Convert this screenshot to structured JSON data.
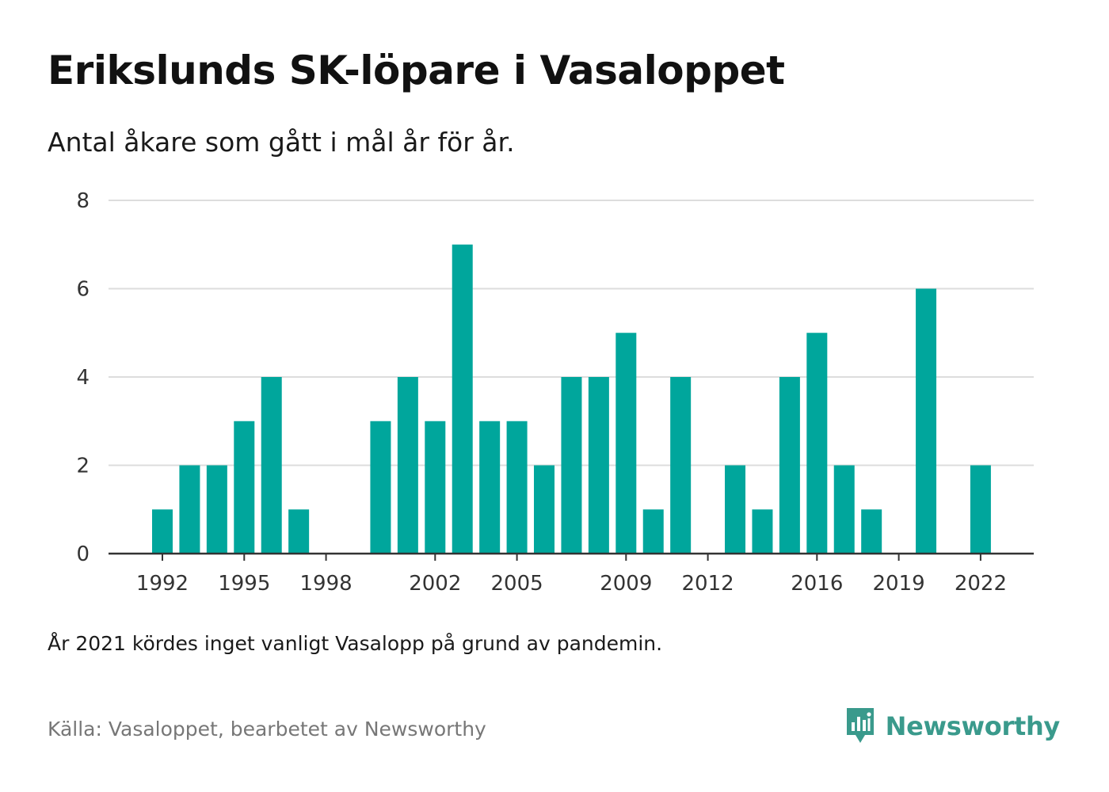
{
  "title": "Erikslunds SK-löpare i Vasaloppet",
  "subtitle": "Antal åkare som gått i mål år för år.",
  "note": "År 2021 kördes inget vanligt Vasalopp på grund av pandemin.",
  "source": "Källa: Vasaloppet, bearbetet av Newsworthy",
  "brand": {
    "name": "Newsworthy",
    "color": "#3a9a8c"
  },
  "chart_data": {
    "type": "bar",
    "x": [
      1992,
      1993,
      1994,
      1995,
      1996,
      1997,
      1998,
      1999,
      2000,
      2001,
      2002,
      2003,
      2004,
      2005,
      2006,
      2007,
      2008,
      2009,
      2010,
      2011,
      2012,
      2013,
      2014,
      2015,
      2016,
      2017,
      2018,
      2019,
      2020,
      2021,
      2022
    ],
    "values": [
      1,
      2,
      2,
      3,
      4,
      1,
      0,
      0,
      3,
      4,
      3,
      7,
      3,
      3,
      2,
      4,
      4,
      5,
      1,
      4,
      0,
      2,
      1,
      4,
      5,
      2,
      1,
      0,
      6,
      0,
      2
    ],
    "x_ticks": [
      1992,
      1995,
      1998,
      2002,
      2005,
      2009,
      2012,
      2016,
      2019,
      2022
    ],
    "y_ticks": [
      0,
      2,
      4,
      6,
      8
    ],
    "ylim": [
      0,
      8
    ],
    "bar_color": "#00a69c",
    "grid": true,
    "grid_color": "#dddddd",
    "axis_color": "#333333"
  }
}
